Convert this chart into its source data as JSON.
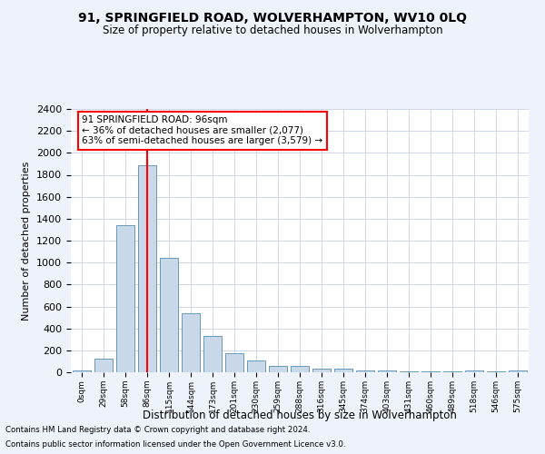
{
  "title": "91, SPRINGFIELD ROAD, WOLVERHAMPTON, WV10 0LQ",
  "subtitle": "Size of property relative to detached houses in Wolverhampton",
  "xlabel": "Distribution of detached houses by size in Wolverhampton",
  "ylabel": "Number of detached properties",
  "categories": [
    "0sqm",
    "29sqm",
    "58sqm",
    "86sqm",
    "115sqm",
    "144sqm",
    "173sqm",
    "201sqm",
    "230sqm",
    "259sqm",
    "288sqm",
    "316sqm",
    "345sqm",
    "374sqm",
    "403sqm",
    "431sqm",
    "460sqm",
    "489sqm",
    "518sqm",
    "546sqm",
    "575sqm"
  ],
  "values": [
    15,
    125,
    1340,
    1890,
    1045,
    540,
    335,
    170,
    110,
    60,
    55,
    35,
    30,
    20,
    15,
    5,
    5,
    5,
    20,
    5,
    20
  ],
  "bar_color": "#c9d9ea",
  "bar_edge_color": "#6a9ab8",
  "ylim": [
    0,
    2400
  ],
  "yticks": [
    0,
    200,
    400,
    600,
    800,
    1000,
    1200,
    1400,
    1600,
    1800,
    2000,
    2200,
    2400
  ],
  "property_bin_index": 3,
  "annotation_title": "91 SPRINGFIELD ROAD: 96sqm",
  "annotation_line1": "← 36% of detached houses are smaller (2,077)",
  "annotation_line2": "63% of semi-detached houses are larger (3,579) →",
  "annotation_box_color": "white",
  "annotation_box_edge_color": "red",
  "red_line_color": "red",
  "footnote1": "Contains HM Land Registry data © Crown copyright and database right 2024.",
  "footnote2": "Contains public sector information licensed under the Open Government Licence v3.0.",
  "background_color": "#eef2fa",
  "plot_background": "white",
  "grid_color": "#d0d4e8"
}
